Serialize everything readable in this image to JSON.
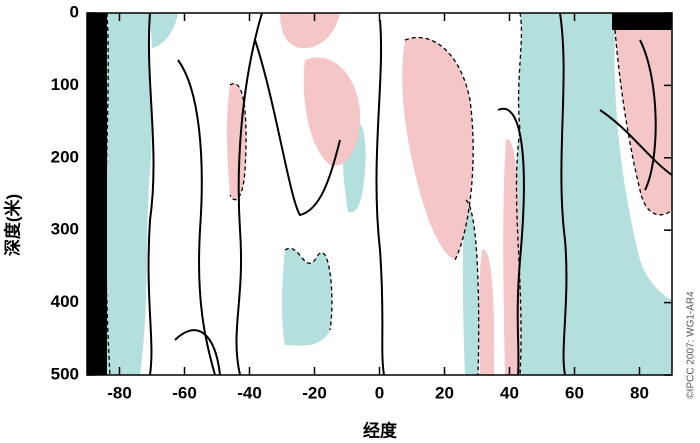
{
  "chart_data": {
    "type": "contour",
    "xlabel": "经度",
    "ylabel": "深度(米)",
    "credit": "©IPCC 2007: WG1-AR4",
    "xlim": [
      -90,
      90
    ],
    "ylim": [
      0,
      500
    ],
    "y_inverted": true,
    "xticks": [
      -80,
      -60,
      -40,
      -20,
      0,
      20,
      40,
      60,
      80
    ],
    "yticks": [
      0,
      100,
      200,
      300,
      400,
      500
    ]
  }
}
